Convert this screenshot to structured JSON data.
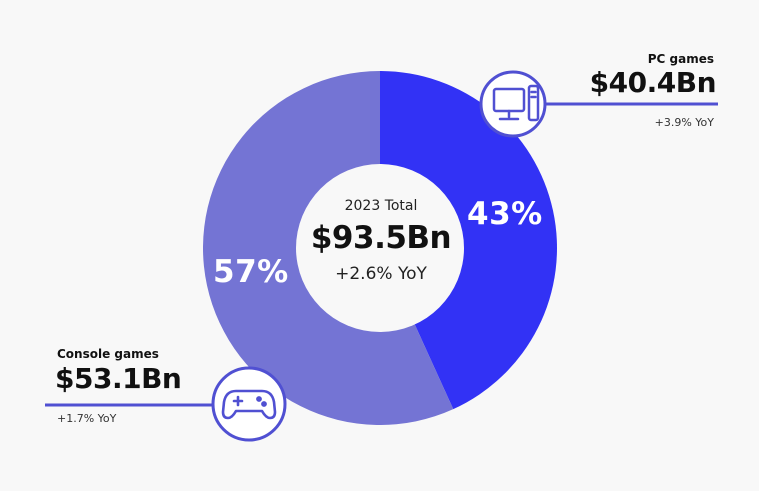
{
  "chart_data": {
    "type": "pie",
    "variant": "donut",
    "total_label": "2023 Total",
    "total_value": "$93.5Bn",
    "total_yoy": "+2.6% YoY",
    "series": [
      {
        "name": "PC games",
        "value": 40.4,
        "value_label": "$40.4Bn",
        "percent": 43,
        "percent_label": "43%",
        "yoy": "+3.9% YoY",
        "color": "#3232f5",
        "icon": "desktop-computer-icon"
      },
      {
        "name": "Console games",
        "value": 53.1,
        "value_label": "$53.1Bn",
        "percent": 57,
        "percent_label": "57%",
        "yoy": "+1.7% YoY",
        "color": "#7474d4",
        "icon": "gamepad-icon"
      }
    ],
    "accent_color": "#5050d2",
    "background_color": "#f8f8f8"
  }
}
